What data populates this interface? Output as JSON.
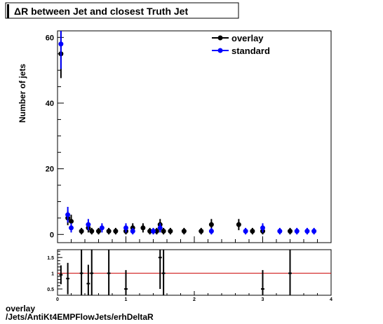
{
  "chart_data": [
    {
      "type": "scatter",
      "title": "ΔR between Jet and closest Truth Jet",
      "ylabel": "Number of jets",
      "xlabel": "",
      "xlim": [
        0,
        4
      ],
      "ylim": [
        -2.5,
        62
      ],
      "xticks": [
        0,
        1,
        2,
        3,
        4
      ],
      "yticks": [
        0,
        20,
        40,
        60
      ],
      "legend": "top-right",
      "series": [
        {
          "name": "overlay",
          "color": "#000000",
          "points": [
            {
              "x": 0.05,
              "y": 55,
              "err": 7.4
            },
            {
              "x": 0.15,
              "y": 5,
              "err": 2.2
            },
            {
              "x": 0.2,
              "y": 4,
              "err": 2
            },
            {
              "x": 0.35,
              "y": 1,
              "err": 1
            },
            {
              "x": 0.45,
              "y": 2,
              "err": 1.4
            },
            {
              "x": 0.5,
              "y": 1,
              "err": 1
            },
            {
              "x": 0.6,
              "y": 1,
              "err": 1
            },
            {
              "x": 0.75,
              "y": 1,
              "err": 1
            },
            {
              "x": 0.85,
              "y": 1,
              "err": 1
            },
            {
              "x": 1.0,
              "y": 1,
              "err": 1
            },
            {
              "x": 1.1,
              "y": 2,
              "err": 1.4
            },
            {
              "x": 1.25,
              "y": 2,
              "err": 1.4
            },
            {
              "x": 1.35,
              "y": 1,
              "err": 1
            },
            {
              "x": 1.45,
              "y": 1,
              "err": 1
            },
            {
              "x": 1.5,
              "y": 3,
              "err": 1.7
            },
            {
              "x": 1.55,
              "y": 1,
              "err": 1
            },
            {
              "x": 1.65,
              "y": 1,
              "err": 1
            },
            {
              "x": 1.85,
              "y": 1,
              "err": 1
            },
            {
              "x": 2.1,
              "y": 1,
              "err": 1
            },
            {
              "x": 2.25,
              "y": 3,
              "err": 1.7
            },
            {
              "x": 2.65,
              "y": 3,
              "err": 1.7
            },
            {
              "x": 2.85,
              "y": 1,
              "err": 1
            },
            {
              "x": 3.0,
              "y": 1,
              "err": 1
            },
            {
              "x": 3.4,
              "y": 1,
              "err": 1
            }
          ]
        },
        {
          "name": "standard",
          "color": "#0000ff",
          "points": [
            {
              "x": 0.05,
              "y": 58,
              "err": 7.6
            },
            {
              "x": 0.15,
              "y": 6,
              "err": 2.4
            },
            {
              "x": 0.2,
              "y": 2,
              "err": 1.4
            },
            {
              "x": 0.45,
              "y": 3,
              "err": 1.7
            },
            {
              "x": 0.65,
              "y": 2,
              "err": 1.4
            },
            {
              "x": 1.0,
              "y": 2,
              "err": 1.4
            },
            {
              "x": 1.1,
              "y": 1,
              "err": 1
            },
            {
              "x": 1.4,
              "y": 1,
              "err": 1
            },
            {
              "x": 1.5,
              "y": 2,
              "err": 1.4
            },
            {
              "x": 2.25,
              "y": 1,
              "err": 1
            },
            {
              "x": 2.75,
              "y": 1,
              "err": 1
            },
            {
              "x": 3.0,
              "y": 2,
              "err": 1.4
            },
            {
              "x": 3.25,
              "y": 1,
              "err": 1
            },
            {
              "x": 3.5,
              "y": 1,
              "err": 1
            },
            {
              "x": 3.65,
              "y": 1,
              "err": 1
            },
            {
              "x": 3.75,
              "y": 1,
              "err": 1
            }
          ]
        }
      ]
    },
    {
      "type": "scatter",
      "title": "",
      "xlim": [
        0,
        4
      ],
      "ylim": [
        0.3,
        1.75
      ],
      "xticks": [
        0,
        1,
        2,
        3,
        4
      ],
      "yticks": [
        0.5,
        1,
        1.5
      ],
      "reference_line": {
        "y": 1,
        "color": "#cc0000"
      },
      "series": [
        {
          "name": "",
          "color": "#000000",
          "points": [
            {
              "x": 0.05,
              "y": 0.95,
              "err": 0.3,
              "xerr": 0.025
            },
            {
              "x": 0.15,
              "y": 0.83,
              "err": 0.5,
              "xerr": 0.025
            },
            {
              "x": 0.35,
              "y": 1.0,
              "err": 1.0,
              "xerr": 0.025
            },
            {
              "x": 0.45,
              "y": 0.67,
              "err": 0.6,
              "xerr": 0.025
            },
            {
              "x": 0.5,
              "y": 1.0,
              "err": 1.0,
              "xerr": 0.025
            },
            {
              "x": 0.75,
              "y": 1.0,
              "err": 1.0,
              "xerr": 0.025
            },
            {
              "x": 1.0,
              "y": 0.5,
              "err": 0.6,
              "xerr": 0.025
            },
            {
              "x": 1.5,
              "y": 1.5,
              "err": 1.0,
              "xerr": 0.025
            },
            {
              "x": 1.55,
              "y": 1.0,
              "err": 1.0,
              "xerr": 0.025
            },
            {
              "x": 3.0,
              "y": 0.5,
              "err": 0.6,
              "xerr": 0.025
            },
            {
              "x": 3.4,
              "y": 1.0,
              "err": 1.0,
              "xerr": 0.025
            }
          ]
        }
      ]
    }
  ],
  "footer": {
    "line1": "overlay",
    "line2": "/Jets/AntiKt4EMPFlowJets/erhDeltaR"
  }
}
